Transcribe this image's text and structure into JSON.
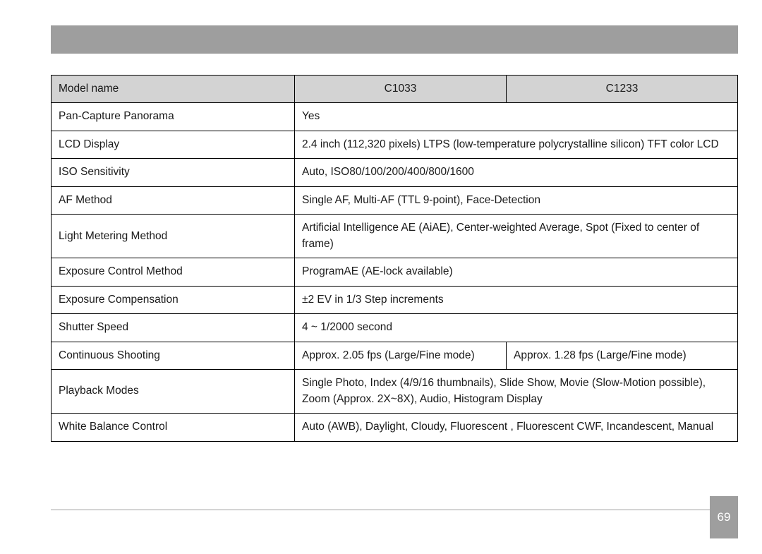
{
  "page_number": "69",
  "colors": {
    "bar": "#9e9e9e",
    "header_bg": "#d3d3d3",
    "border": "#000000",
    "text": "#1a1a1a",
    "pagebox_bg": "#9e9e9e",
    "pagebox_text": "#ffffff",
    "footer_line": "#9e9e9e"
  },
  "table": {
    "header": {
      "label": "Model name",
      "col1": "C1033",
      "col2": "C1233"
    },
    "rows": [
      {
        "label": "Pan-Capture Panorama",
        "span": true,
        "value": "Yes"
      },
      {
        "label": "LCD Display",
        "span": true,
        "value": "2.4 inch (112,320 pixels) LTPS (low-temperature polycrystalline silicon) TFT color LCD"
      },
      {
        "label": "ISO Sensitivity",
        "span": true,
        "value": "Auto, ISO80/100/200/400/800/1600"
      },
      {
        "label": "AF Method",
        "span": true,
        "value": "Single AF, Multi-AF (TTL 9-point), Face-Detection"
      },
      {
        "label": "Light Metering Method",
        "span": true,
        "value": "Artificial Intelligence AE (AiAE), Center-weighted Average, Spot (Fixed to center of frame)"
      },
      {
        "label": "Exposure Control Method",
        "span": true,
        "value": "ProgramAE (AE-lock available)"
      },
      {
        "label": "Exposure Compensation",
        "span": true,
        "value": "±2 EV in 1/3 Step increments"
      },
      {
        "label": "Shutter Speed",
        "span": true,
        "value": "4 ~ 1/2000 second"
      },
      {
        "label": "Continuous Shooting",
        "span": false,
        "col1": "Approx. 2.05 fps (Large/Fine mode)",
        "col2": "Approx. 1.28 fps (Large/Fine mode)"
      },
      {
        "label": "Playback Modes",
        "span": true,
        "value": "Single Photo, Index (4/9/16 thumbnails), Slide Show, Movie (Slow-Motion possible), Zoom (Approx. 2X~8X), Audio, Histogram Display"
      },
      {
        "label": "White Balance Control",
        "span": true,
        "value": "Auto (AWB), Daylight, Cloudy, Fluorescent , Fluorescent CWF, Incandescent, Manual"
      }
    ]
  }
}
